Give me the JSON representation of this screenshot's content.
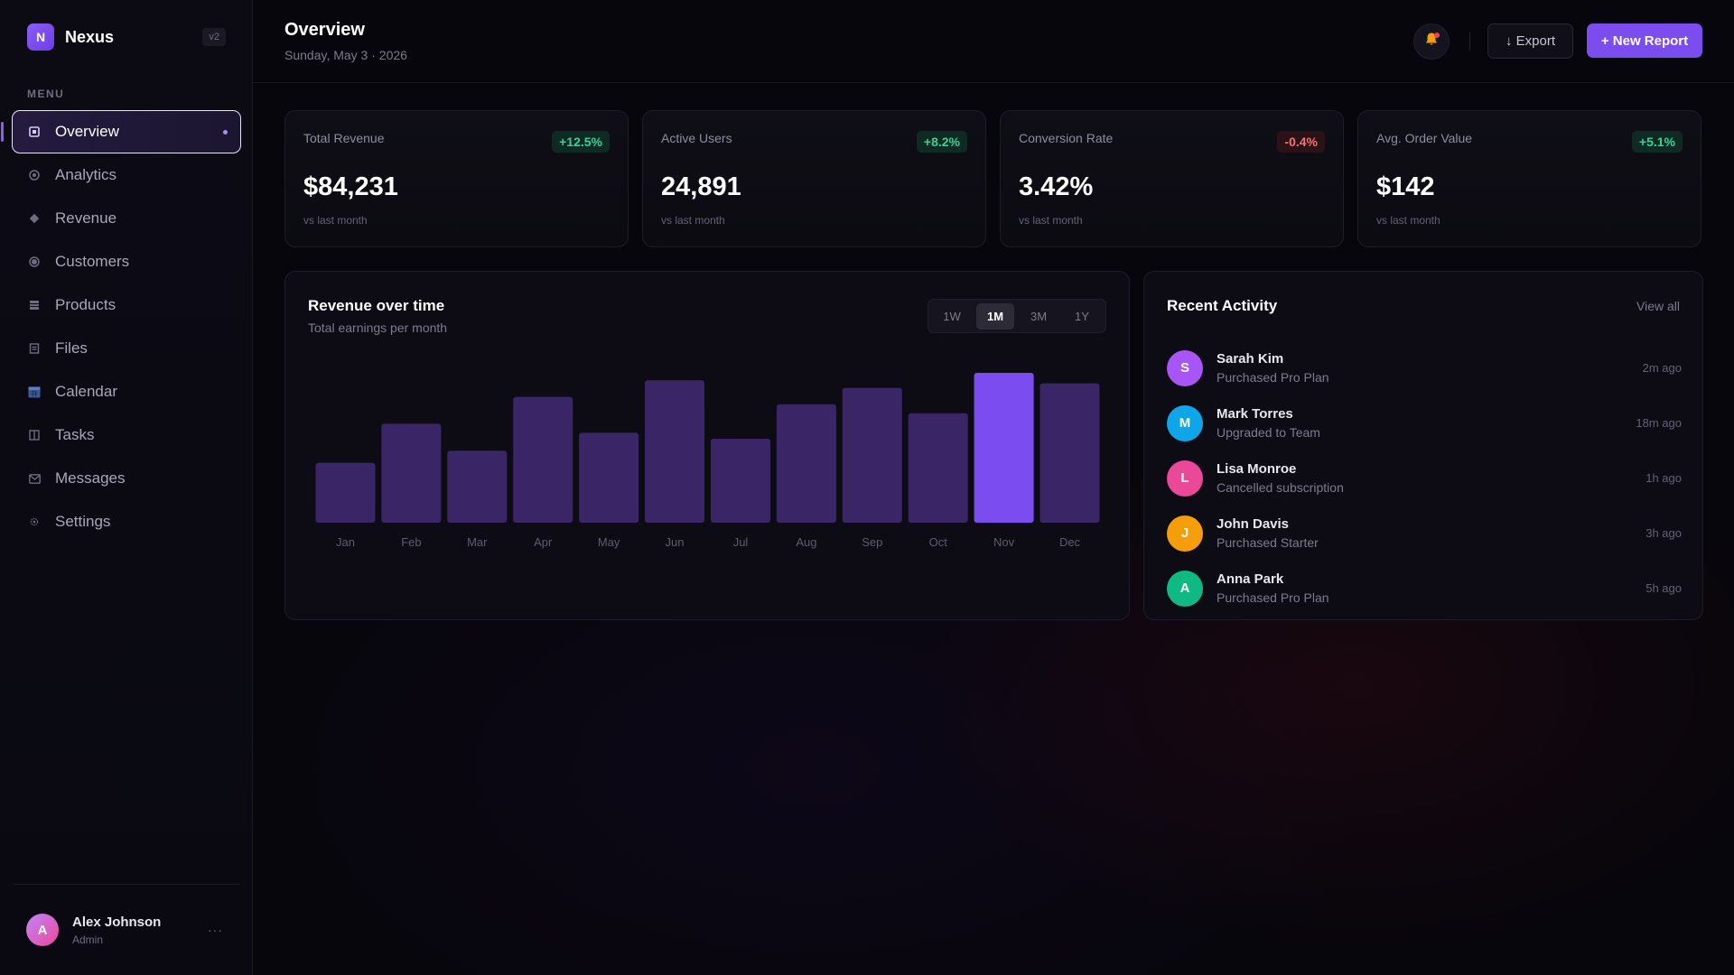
{
  "brand": {
    "logo_letter": "N",
    "name": "Nexus",
    "version": "v2"
  },
  "sidebar": {
    "menu_label": "MENU",
    "items": [
      {
        "label": "Overview",
        "icon": "square-icon",
        "active": true
      },
      {
        "label": "Analytics",
        "icon": "target-icon"
      },
      {
        "label": "Revenue",
        "icon": "diamond-icon"
      },
      {
        "label": "Customers",
        "icon": "circle-icon"
      },
      {
        "label": "Products",
        "icon": "grid-icon"
      },
      {
        "label": "Files",
        "icon": "file-icon"
      },
      {
        "label": "Calendar",
        "icon": "calendar-icon"
      },
      {
        "label": "Tasks",
        "icon": "columns-icon"
      },
      {
        "label": "Messages",
        "icon": "mail-icon"
      },
      {
        "label": "Settings",
        "icon": "gear-icon"
      }
    ],
    "user": {
      "initial": "A",
      "name": "Alex Johnson",
      "role": "Admin",
      "more": "···"
    }
  },
  "header": {
    "title": "Overview",
    "date": "Sunday, May 3 · 2026",
    "export_label": "↓ Export",
    "new_report_label": "+ New Report"
  },
  "stats": [
    {
      "label": "Total Revenue",
      "value": "$84,231",
      "change": "+12.5%",
      "trend": "up",
      "sub": "vs last month"
    },
    {
      "label": "Active Users",
      "value": "24,891",
      "change": "+8.2%",
      "trend": "up",
      "sub": "vs last month"
    },
    {
      "label": "Conversion Rate",
      "value": "3.42%",
      "change": "-0.4%",
      "trend": "down",
      "sub": "vs last month"
    },
    {
      "label": "Avg. Order Value",
      "value": "$142",
      "change": "+5.1%",
      "trend": "up",
      "sub": "vs last month"
    }
  ],
  "chart_panel": {
    "title": "Revenue over time",
    "subtitle": "Total earnings per month",
    "ranges": [
      "1W",
      "1M",
      "3M",
      "1Y"
    ],
    "active_range": "1M"
  },
  "chart_data": {
    "type": "bar",
    "categories": [
      "Jan",
      "Feb",
      "Mar",
      "Apr",
      "May",
      "Jun",
      "Jul",
      "Aug",
      "Sep",
      "Oct",
      "Nov",
      "Dec"
    ],
    "values": [
      40,
      66,
      48,
      84,
      60,
      95,
      56,
      79,
      90,
      73,
      100,
      93
    ],
    "highlight_index": 10,
    "ylim": [
      0,
      100
    ],
    "title": "Revenue over time",
    "xlabel": "",
    "ylabel": "",
    "grid": false,
    "colors": {
      "bar": "#3a2566",
      "highlight": "#7c4dee",
      "tick": "#5e5b70"
    }
  },
  "activity": {
    "title": "Recent Activity",
    "view_all": "View all",
    "items": [
      {
        "initial": "S",
        "name": "Sarah Kim",
        "action": "Purchased Pro Plan",
        "time": "2m ago",
        "color": "#a855f7"
      },
      {
        "initial": "M",
        "name": "Mark Torres",
        "action": "Upgraded to Team",
        "time": "18m ago",
        "color": "#0ea5e9"
      },
      {
        "initial": "L",
        "name": "Lisa Monroe",
        "action": "Cancelled subscription",
        "time": "1h ago",
        "color": "#ec4899"
      },
      {
        "initial": "J",
        "name": "John Davis",
        "action": "Purchased Starter",
        "time": "3h ago",
        "color": "#f59e0b"
      },
      {
        "initial": "A",
        "name": "Anna Park",
        "action": "Purchased Pro Plan",
        "time": "5h ago",
        "color": "#10b981"
      }
    ]
  }
}
